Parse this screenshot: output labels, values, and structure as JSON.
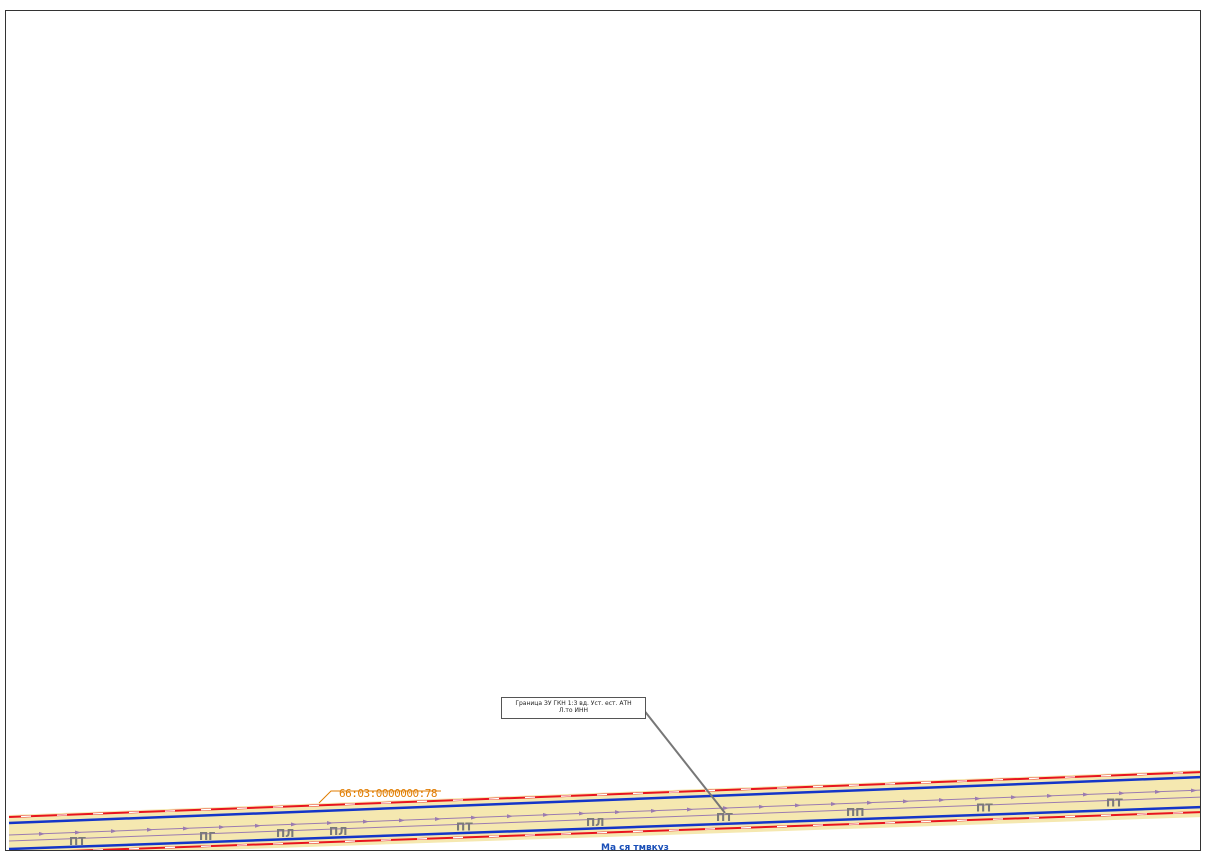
{
  "map": {
    "parcel_number": "66:03:0000000:78",
    "street_label": "Ма ся тмвкуз",
    "callout": {
      "line1": "Граница ЗУ ГКН 1:3 вд. Уст. ест. АТН",
      "line2": "Л.то ИНН"
    },
    "segment_labels": [
      "ПТ",
      "ПГ",
      "ПЛ",
      "ПТ",
      "ПЛ",
      "ПТ",
      "ПП",
      "ПТ",
      "ПТ",
      "ПЛ"
    ],
    "colors": {
      "road_fill": "#f5e8b0",
      "red_boundary": "#e8141e",
      "blue_boundary": "#1436c8",
      "axis": "#9b7bb0",
      "label_gray": "#7a7a7a",
      "cad_label": "#e07c00",
      "street_label": "#1a4fb8"
    }
  }
}
